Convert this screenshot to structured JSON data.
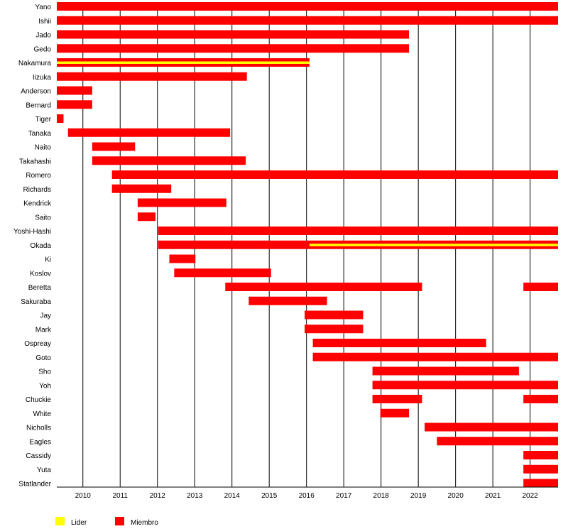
{
  "chart_data": {
    "type": "timeline",
    "title": "",
    "xlabel": "",
    "ylabel": "",
    "xlim": [
      2009.3,
      2022.75
    ],
    "x_ticks": [
      "2010",
      "2011",
      "2012",
      "2013",
      "2014",
      "2015",
      "2016",
      "2017",
      "2018",
      "2019",
      "2020",
      "2021",
      "2022"
    ],
    "grid": "vertical-lines-at-years",
    "colors": {
      "lider": "#ffff00",
      "miembro": "#ff0000"
    },
    "legend": {
      "placement": "bottom-left",
      "items": [
        {
          "key": "lider",
          "label": "Lider",
          "color": "#ffff00"
        },
        {
          "key": "miembro",
          "label": "Miembro",
          "color": "#ff0000"
        }
      ]
    },
    "members": [
      {
        "name": "Yano",
        "member": [
          [
            2009.3,
            2022.75
          ]
        ]
      },
      {
        "name": "Ishii",
        "member": [
          [
            2009.3,
            2022.75
          ]
        ]
      },
      {
        "name": "Jado",
        "member": [
          [
            2009.3,
            2018.75
          ]
        ]
      },
      {
        "name": "Gedo",
        "member": [
          [
            2009.3,
            2018.75
          ]
        ]
      },
      {
        "name": "Nakamura",
        "member": [
          [
            2009.3,
            2016.08
          ]
        ],
        "leader": [
          [
            2009.3,
            2016.08
          ]
        ]
      },
      {
        "name": "Iizuka",
        "member": [
          [
            2009.3,
            2014.4
          ]
        ]
      },
      {
        "name": "Anderson",
        "member": [
          [
            2009.3,
            2010.25
          ]
        ]
      },
      {
        "name": "Bernard",
        "member": [
          [
            2009.3,
            2010.25
          ]
        ]
      },
      {
        "name": "Tiger",
        "member": [
          [
            2009.3,
            2009.48
          ]
        ]
      },
      {
        "name": "Tanaka",
        "member": [
          [
            2009.6,
            2013.95
          ]
        ]
      },
      {
        "name": "Naito",
        "member": [
          [
            2010.25,
            2011.4
          ]
        ]
      },
      {
        "name": "Takahashi",
        "member": [
          [
            2010.25,
            2014.37
          ]
        ]
      },
      {
        "name": "Romero",
        "member": [
          [
            2010.78,
            2022.75
          ]
        ]
      },
      {
        "name": "Richards",
        "member": [
          [
            2010.78,
            2012.37
          ]
        ]
      },
      {
        "name": "Kendrick",
        "member": [
          [
            2011.47,
            2013.85
          ]
        ]
      },
      {
        "name": "Saito",
        "member": [
          [
            2011.47,
            2011.95
          ]
        ]
      },
      {
        "name": "Yoshi-Hashi",
        "member": [
          [
            2012.02,
            2022.75
          ]
        ]
      },
      {
        "name": "Okada",
        "member": [
          [
            2012.02,
            2022.75
          ]
        ],
        "leader": [
          [
            2016.08,
            2022.75
          ]
        ]
      },
      {
        "name": "Ki",
        "member": [
          [
            2012.32,
            2013.02
          ]
        ]
      },
      {
        "name": "Koslov",
        "member": [
          [
            2012.45,
            2015.05
          ]
        ]
      },
      {
        "name": "Beretta",
        "member": [
          [
            2013.82,
            2019.1
          ],
          [
            2021.82,
            2022.75
          ]
        ]
      },
      {
        "name": "Sakuraba",
        "member": [
          [
            2014.45,
            2016.55
          ]
        ]
      },
      {
        "name": "Jay",
        "member": [
          [
            2015.95,
            2017.52
          ]
        ]
      },
      {
        "name": "Mark",
        "member": [
          [
            2015.95,
            2017.52
          ]
        ]
      },
      {
        "name": "Ospreay",
        "member": [
          [
            2016.17,
            2020.82
          ]
        ]
      },
      {
        "name": "Goto",
        "member": [
          [
            2016.17,
            2022.75
          ]
        ]
      },
      {
        "name": "Sho",
        "member": [
          [
            2017.77,
            2021.7
          ]
        ]
      },
      {
        "name": "Yoh",
        "member": [
          [
            2017.77,
            2022.75
          ]
        ]
      },
      {
        "name": "Chuckie",
        "member": [
          [
            2017.77,
            2019.1
          ],
          [
            2021.82,
            2022.75
          ]
        ]
      },
      {
        "name": "White",
        "member": [
          [
            2017.98,
            2018.75
          ]
        ]
      },
      {
        "name": "Nicholls",
        "member": [
          [
            2019.17,
            2022.75
          ]
        ]
      },
      {
        "name": "Eagles",
        "member": [
          [
            2019.5,
            2022.75
          ]
        ]
      },
      {
        "name": "Cassidy",
        "member": [
          [
            2021.82,
            2022.75
          ]
        ]
      },
      {
        "name": "Yuta",
        "member": [
          [
            2021.82,
            2022.75
          ]
        ]
      },
      {
        "name": "Statlander",
        "member": [
          [
            2021.82,
            2022.75
          ]
        ]
      }
    ]
  }
}
